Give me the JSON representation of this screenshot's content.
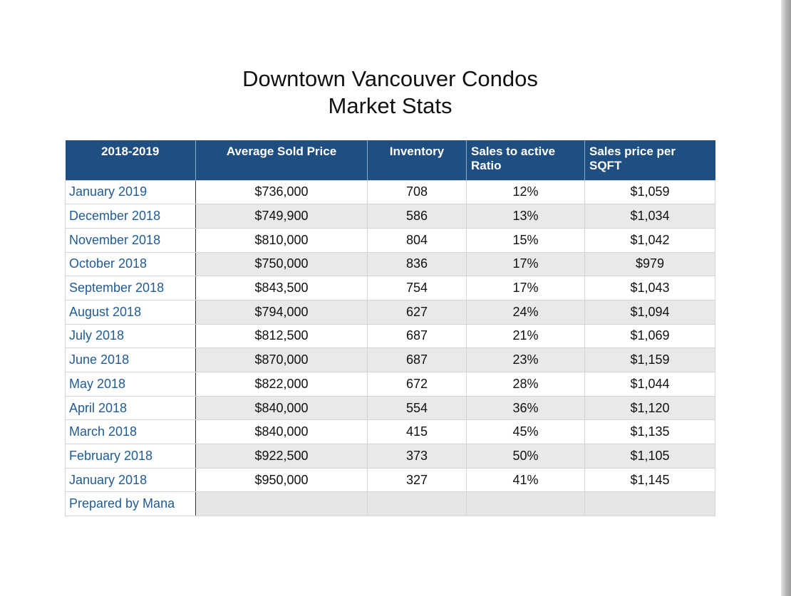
{
  "title": {
    "line1": "Downtown Vancouver Condos",
    "line2": "Market Stats"
  },
  "table": {
    "headers": [
      "2018-2019",
      "Average Sold Price",
      "Inventory",
      "Sales to active Ratio",
      "Sales price per SQFT"
    ],
    "rows": [
      [
        "January 2019",
        "$736,000",
        "708",
        "12%",
        "$1,059"
      ],
      [
        "December 2018",
        "$749,900",
        "586",
        "13%",
        "$1,034"
      ],
      [
        "November 2018",
        "$810,000",
        "804",
        "15%",
        "$1,042"
      ],
      [
        "October 2018",
        "$750,000",
        "836",
        "17%",
        "$979"
      ],
      [
        "September 2018",
        "$843,500",
        "754",
        "17%",
        "$1,043"
      ],
      [
        "August 2018",
        "$794,000",
        "627",
        "24%",
        "$1,094"
      ],
      [
        "July 2018",
        "$812,500",
        "687",
        "21%",
        "$1,069"
      ],
      [
        "June 2018",
        "$870,000",
        "687",
        "23%",
        "$1,159"
      ],
      [
        "May 2018",
        "$822,000",
        "672",
        "28%",
        "$1,044"
      ],
      [
        "April 2018",
        "$840,000",
        "554",
        "36%",
        "$1,120"
      ],
      [
        "March 2018",
        "$840,000",
        "415",
        "45%",
        "$1,135"
      ],
      [
        "February 2018",
        "$922,500",
        "373",
        "50%",
        "$1,105"
      ],
      [
        "January 2018",
        "$950,000",
        "327",
        "41%",
        "$1,145"
      ]
    ],
    "footer": "Prepared by Mana"
  },
  "colors": {
    "header_bg": "#1f4e80",
    "header_text": "#ffffff",
    "month_text": "#1f5b96",
    "alt_row_bg": "#e9e9e9"
  }
}
